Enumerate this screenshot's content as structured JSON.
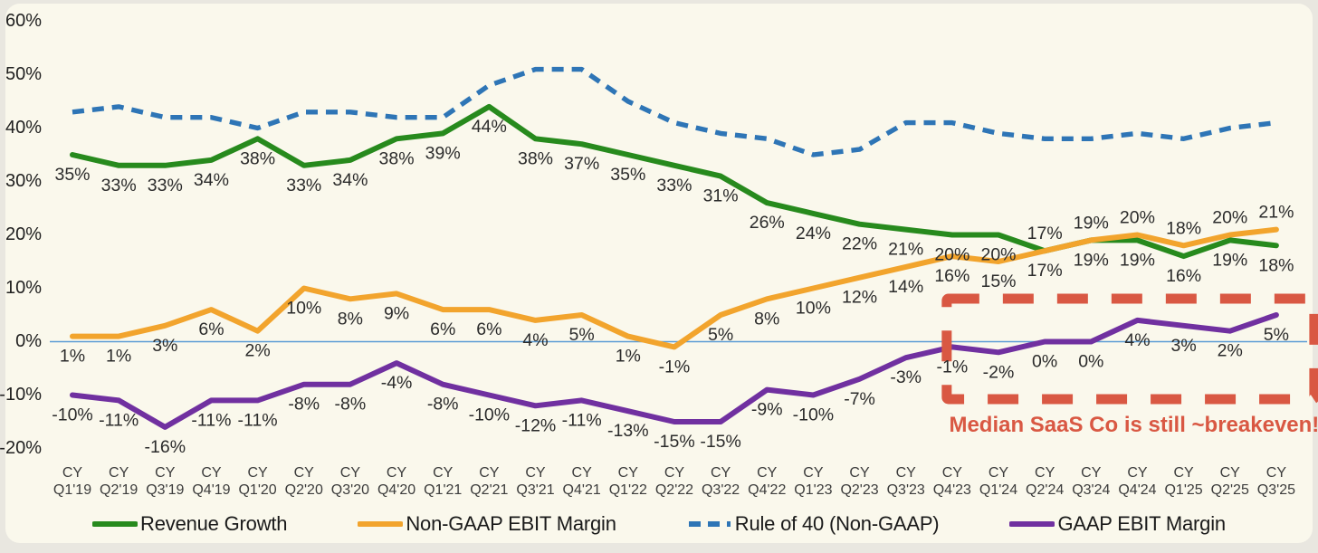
{
  "page": {
    "background_color": "#e9e7e0",
    "card_color": "#faf8ec"
  },
  "chart_data": {
    "type": "line",
    "title": "",
    "categories": [
      "CY Q1'19",
      "CY Q2'19",
      "CY Q3'19",
      "CY Q4'19",
      "CY Q1'20",
      "CY Q2'20",
      "CY Q3'20",
      "CY Q4'20",
      "CY Q1'21",
      "CY Q2'21",
      "CY Q3'21",
      "CY Q4'21",
      "CY Q1'22",
      "CY Q2'22",
      "CY Q3'22",
      "CY Q4'22",
      "CY Q1'23",
      "CY Q2'23",
      "CY Q3'23",
      "CY Q4'23",
      "CY Q1'24",
      "CY Q2'24",
      "CY Q3'24",
      "CY Q4'24",
      "CY Q1'25",
      "CY Q2'25",
      "CY Q3'25"
    ],
    "y_axis": {
      "tick_values": [
        60,
        50,
        40,
        30,
        20,
        10,
        0,
        -10,
        -20
      ],
      "tick_suffix": "%",
      "ylim": [
        -20,
        60
      ],
      "grid": "none",
      "zero_line_color": "#5b9bd5"
    },
    "series": [
      {
        "name": "Revenue Growth",
        "slug": "revenue-growth",
        "color": "#278a1d",
        "style": "solid",
        "values": [
          35,
          33,
          33,
          34,
          38,
          33,
          34,
          38,
          39,
          44,
          38,
          37,
          35,
          33,
          31,
          26,
          24,
          22,
          21,
          20,
          20,
          17,
          19,
          19,
          16,
          19,
          18
        ],
        "labels": "below",
        "label_exceptions": {
          "21": "above"
        }
      },
      {
        "name": "Non-GAAP EBIT Margin",
        "slug": "non-gaap-ebit-margin",
        "color": "#f2a42d",
        "style": "solid",
        "values": [
          1,
          1,
          3,
          6,
          2,
          10,
          8,
          9,
          6,
          6,
          4,
          5,
          1,
          -1,
          5,
          8,
          10,
          12,
          14,
          16,
          15,
          17,
          19,
          20,
          18,
          20,
          21
        ],
        "labels": "below",
        "label_exceptions": {
          "22": "above",
          "23": "above",
          "24": "above",
          "25": "above",
          "26": "above"
        }
      },
      {
        "name": "Rule of 40 (Non-GAAP)",
        "slug": "rule-of-40",
        "color": "#2e75b6",
        "style": "dashed",
        "values": [
          43,
          44,
          42,
          42,
          40,
          43,
          43,
          42,
          42,
          48,
          51,
          51,
          45,
          41,
          39,
          38,
          35,
          36,
          41,
          41,
          39,
          38,
          38,
          39,
          38,
          40,
          41
        ],
        "labels": "none",
        "estimated": true
      },
      {
        "name": "GAAP EBIT Margin",
        "slug": "gaap-ebit-margin",
        "color": "#7030a0",
        "style": "solid",
        "values": [
          -10,
          -11,
          -16,
          -11,
          -11,
          -8,
          -8,
          -4,
          -8,
          -10,
          -12,
          -11,
          -13,
          -15,
          -15,
          -9,
          -10,
          -7,
          -3,
          -1,
          -2,
          0,
          0,
          4,
          3,
          2,
          5
        ],
        "labels": "below"
      }
    ],
    "annotation": {
      "text": "Median SaaS Co is still ~breakeven!",
      "color": "#d95843",
      "highlight_from": "CY Q4'23",
      "highlight_to": "CY Q3'25"
    },
    "legend_position": "bottom"
  }
}
